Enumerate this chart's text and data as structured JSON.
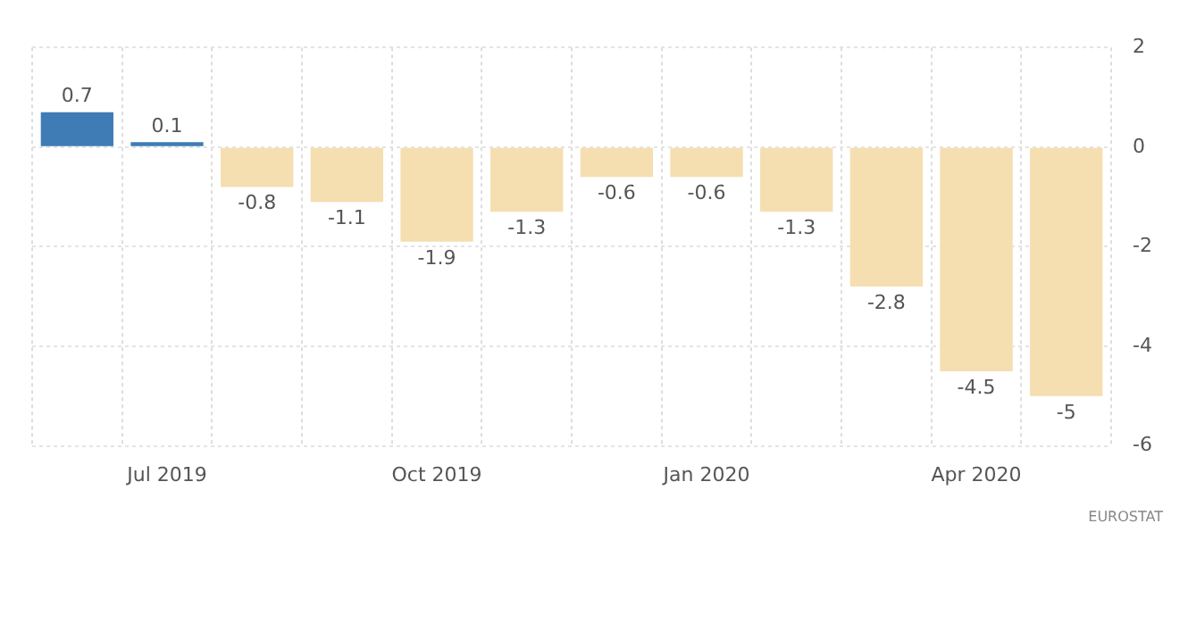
{
  "chart_data": {
    "type": "bar",
    "categories": [
      null,
      "Jul 2019",
      null,
      null,
      "Oct 2019",
      null,
      null,
      "Jan 2020",
      null,
      null,
      "Apr 2020",
      null
    ],
    "values": [
      0.7,
      0.1,
      -0.8,
      -1.1,
      -1.9,
      -1.3,
      -0.6,
      -0.6,
      -1.3,
      -2.8,
      -4.5,
      -5
    ],
    "colors": [
      "#3f7cb6",
      "#3f7cb6",
      "#f5deb0",
      "#f5deb0",
      "#f5deb0",
      "#f5deb0",
      "#f5deb0",
      "#f5deb0",
      "#f5deb0",
      "#f5deb0",
      "#f5deb0",
      "#f5deb0"
    ],
    "ylim": [
      -6,
      2
    ],
    "yticks": [
      -6,
      -4,
      -2,
      0,
      2
    ],
    "grid": true,
    "data_labels": true,
    "annotations": [
      "EUROSTAT"
    ]
  }
}
